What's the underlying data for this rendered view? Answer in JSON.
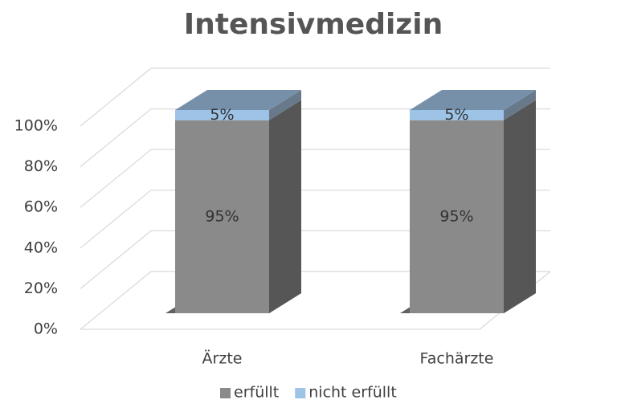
{
  "chart_data": {
    "type": "bar3d_stacked",
    "title": "Intensivmedizin",
    "categories": [
      "Ärzte",
      "Fachärzte"
    ],
    "series": [
      {
        "name": "erfüllt",
        "color": "#8a8a8a",
        "values": [
          95,
          95
        ],
        "value_labels": [
          "95%",
          "95%"
        ]
      },
      {
        "name": "nicht erfüllt",
        "color": "#9dc3e6",
        "values": [
          5,
          5
        ],
        "value_labels": [
          "5%",
          "5%"
        ]
      }
    ],
    "ylim": [
      0,
      100
    ],
    "yticks": [
      {
        "value": 0,
        "label": "0%"
      },
      {
        "value": 20,
        "label": "20%"
      },
      {
        "value": 40,
        "label": "40%"
      },
      {
        "value": 60,
        "label": "60%"
      },
      {
        "value": 80,
        "label": "80%"
      },
      {
        "value": 100,
        "label": "100%"
      }
    ],
    "grid": true,
    "legend": "bottom"
  }
}
